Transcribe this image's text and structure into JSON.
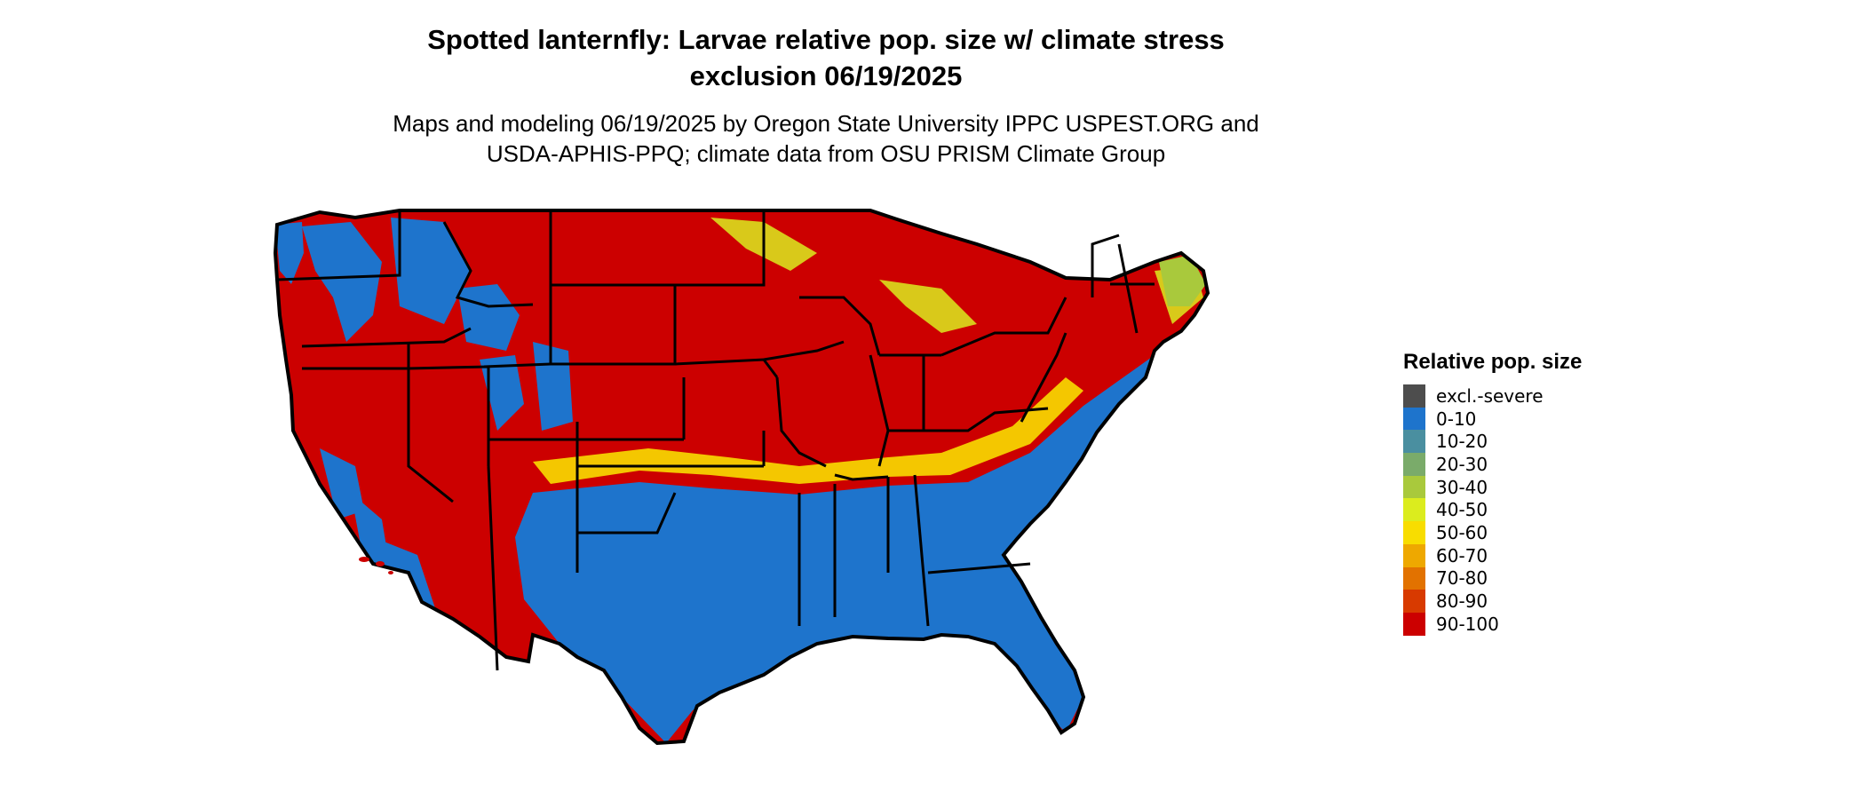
{
  "title_line1": "Spotted lanternfly: Larvae relative pop. size w/ climate stress",
  "title_line2": "exclusion 06/19/2025",
  "subtitle_line1": "Maps and modeling 06/19/2025 by Oregon State University IPPC USPEST.ORG and",
  "subtitle_line2": "USDA-APHIS-PPQ; climate data from OSU PRISM Climate Group",
  "legend": {
    "title": "Relative pop. size",
    "items": [
      {
        "label": "excl.-severe",
        "color": "#4d4d4d"
      },
      {
        "label": "0-10",
        "color": "#1e74cc"
      },
      {
        "label": "10-20",
        "color": "#4a8fa0"
      },
      {
        "label": "20-30",
        "color": "#7aab6a"
      },
      {
        "label": "30-40",
        "color": "#a9c93c"
      },
      {
        "label": "40-50",
        "color": "#dbec1e"
      },
      {
        "label": "50-60",
        "color": "#f8dd00"
      },
      {
        "label": "60-70",
        "color": "#eea800"
      },
      {
        "label": "70-80",
        "color": "#e27200"
      },
      {
        "label": "80-90",
        "color": "#d83a00"
      },
      {
        "label": "90-100",
        "color": "#cc0000"
      }
    ]
  }
}
